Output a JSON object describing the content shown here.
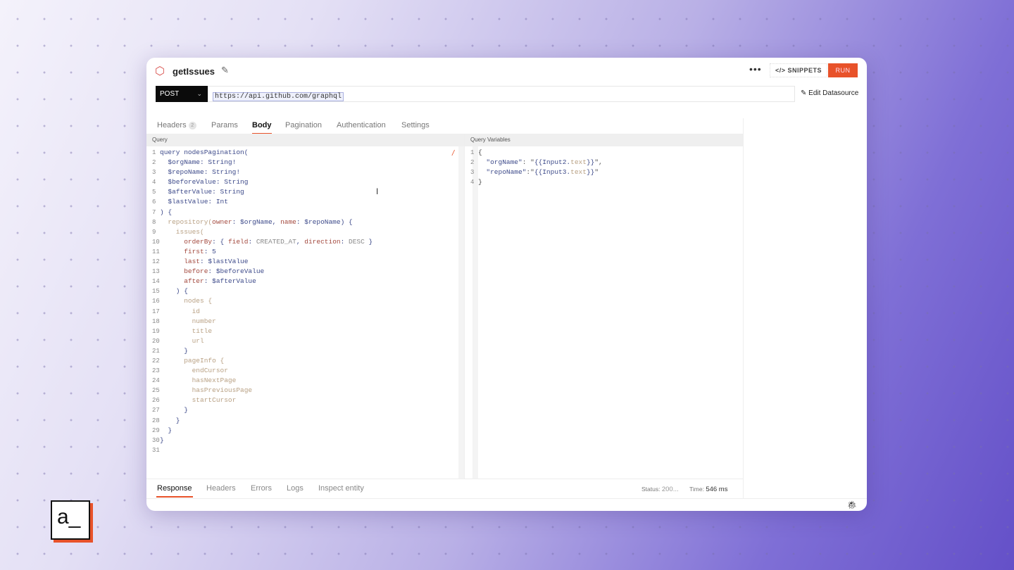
{
  "header": {
    "title": "getIssues",
    "snippets_label": "SNIPPETS",
    "run_label": "RUN",
    "more_icon": "ellipsis-icon",
    "edit_datasource_label": "Edit Datasource"
  },
  "request": {
    "method": "POST",
    "url": "https://api.github.com/graphql"
  },
  "tabs": [
    {
      "label": "Headers",
      "badge": "2"
    },
    {
      "label": "Params"
    },
    {
      "label": "Body",
      "active": true
    },
    {
      "label": "Pagination"
    },
    {
      "label": "Authentication"
    },
    {
      "label": "Settings"
    }
  ],
  "query_panel": {
    "label": "Query",
    "lines": [
      [
        [
          "query nodesPagination(",
          "k"
        ]
      ],
      [
        [
          "  $orgName: String!",
          "k"
        ]
      ],
      [
        [
          "  $repoName: String!",
          "k"
        ]
      ],
      [
        [
          "  $beforeValue: String",
          "k"
        ]
      ],
      [
        [
          "  $afterValue: String",
          "k"
        ]
      ],
      [
        [
          "  $lastValue: Int",
          "k"
        ]
      ],
      [
        [
          ") {",
          "k"
        ]
      ],
      [
        [
          "  repository(",
          "t"
        ],
        [
          "owner",
          "f"
        ],
        [
          ": $orgName, ",
          "k"
        ],
        [
          "name",
          "f"
        ],
        [
          ": $repoName) {",
          "k"
        ]
      ],
      [
        [
          "    issues(",
          "t"
        ]
      ],
      [
        [
          "      orderBy",
          "f"
        ],
        [
          ": { ",
          "k"
        ],
        [
          "field",
          "f"
        ],
        [
          ": ",
          "k"
        ],
        [
          "CREATED_AT",
          "c"
        ],
        [
          ", ",
          "k"
        ],
        [
          "direction",
          "f"
        ],
        [
          ": ",
          "k"
        ],
        [
          "DESC",
          "c"
        ],
        [
          " }",
          "k"
        ]
      ],
      [
        [
          "      first",
          "f"
        ],
        [
          ": 5",
          "k"
        ]
      ],
      [
        [
          "      last",
          "f"
        ],
        [
          ": $lastValue",
          "k"
        ]
      ],
      [
        [
          "      before",
          "f"
        ],
        [
          ": $beforeValue",
          "k"
        ]
      ],
      [
        [
          "      after",
          "f"
        ],
        [
          ": $afterValue",
          "k"
        ]
      ],
      [
        [
          "    ) {",
          "k"
        ]
      ],
      [
        [
          "      nodes {",
          "t"
        ]
      ],
      [
        [
          "        id",
          "t"
        ]
      ],
      [
        [
          "        number",
          "t"
        ]
      ],
      [
        [
          "        title",
          "t"
        ]
      ],
      [
        [
          "        url",
          "t"
        ]
      ],
      [
        [
          "      }",
          "k"
        ]
      ],
      [
        [
          "      pageInfo {",
          "t"
        ]
      ],
      [
        [
          "        endCursor",
          "t"
        ]
      ],
      [
        [
          "        hasNextPage",
          "t"
        ]
      ],
      [
        [
          "        hasPreviousPage",
          "t"
        ]
      ],
      [
        [
          "        startCursor",
          "t"
        ]
      ],
      [
        [
          "      }",
          "k"
        ]
      ],
      [
        [
          "    }",
          "k"
        ]
      ],
      [
        [
          "  }",
          "k"
        ]
      ],
      [
        [
          "}",
          "k"
        ]
      ],
      []
    ]
  },
  "variables_panel": {
    "label": "Query Variables",
    "lines": [
      [
        [
          "{",
          "p"
        ]
      ],
      [
        [
          "  \"orgName\"",
          "k"
        ],
        [
          ": \"",
          "s"
        ],
        [
          "{{Input2.",
          "k"
        ],
        [
          "text",
          "t"
        ],
        [
          "}}",
          "k"
        ],
        [
          "\",",
          "s"
        ]
      ],
      [
        [
          "  \"repoName\"",
          "k"
        ],
        [
          ":\"",
          "s"
        ],
        [
          "{{Input3.",
          "k"
        ],
        [
          "text",
          "t"
        ],
        [
          "}}",
          "k"
        ],
        [
          "\"",
          "s"
        ]
      ],
      [
        [
          "}",
          "p"
        ]
      ]
    ]
  },
  "response_tabs": [
    {
      "label": "Response",
      "active": true
    },
    {
      "label": "Headers"
    },
    {
      "label": "Errors"
    },
    {
      "label": "Logs"
    },
    {
      "label": "Inspect entity"
    }
  ],
  "status": {
    "status_label": "Status:",
    "status_value": "200...",
    "time_label": "Time:",
    "time_value": "546 ms"
  },
  "brand_logo": "a_",
  "colors": {
    "accent": "#e8522a",
    "method_bg": "#0b0b0b"
  }
}
